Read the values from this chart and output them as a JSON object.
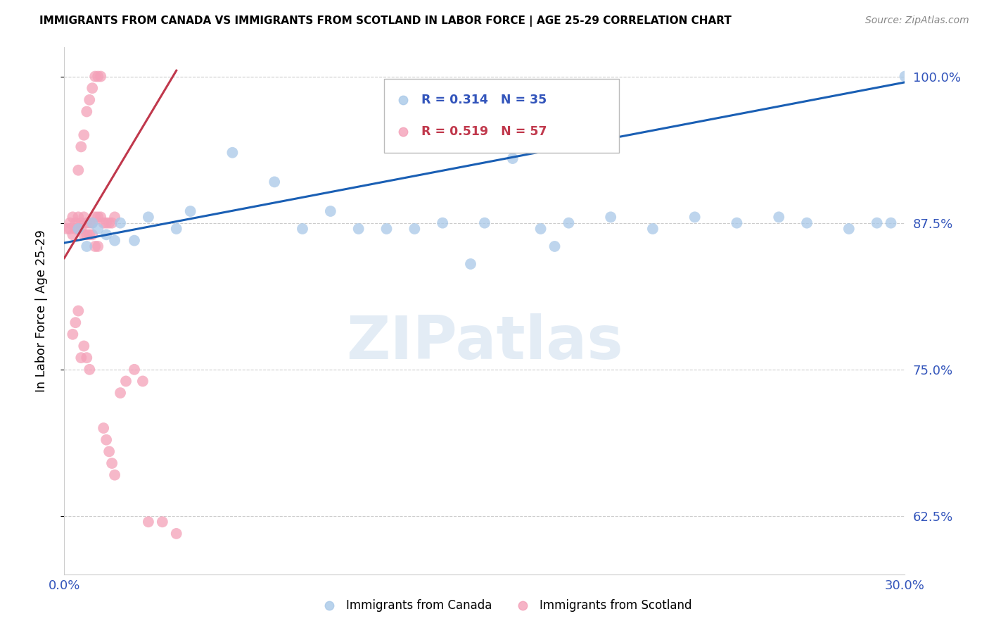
{
  "title": "IMMIGRANTS FROM CANADA VS IMMIGRANTS FROM SCOTLAND IN LABOR FORCE | AGE 25-29 CORRELATION CHART",
  "source": "Source: ZipAtlas.com",
  "ylabel": "In Labor Force | Age 25-29",
  "xlim": [
    0.0,
    0.3
  ],
  "ylim": [
    0.575,
    1.025
  ],
  "ytick_vals": [
    0.625,
    0.75,
    0.875,
    1.0
  ],
  "ytick_labels": [
    "62.5%",
    "75.0%",
    "87.5%",
    "100.0%"
  ],
  "xtick_vals": [
    0.0,
    0.05,
    0.1,
    0.15,
    0.2,
    0.25,
    0.3
  ],
  "xtick_labels": [
    "0.0%",
    "",
    "",
    "",
    "",
    "",
    "30.0%"
  ],
  "canada_R": 0.314,
  "canada_N": 35,
  "scotland_R": 0.519,
  "scotland_N": 57,
  "canada_color": "#a8c8e8",
  "scotland_color": "#f4a0b8",
  "canada_line_color": "#1a5fb4",
  "scotland_line_color": "#c0384c",
  "legend_label_canada": "Immigrants from Canada",
  "legend_label_scotland": "Immigrants from Scotland",
  "watermark_text": "ZIPatlas",
  "canada_x": [
    0.005,
    0.008,
    0.01,
    0.012,
    0.015,
    0.018,
    0.02,
    0.025,
    0.03,
    0.045,
    0.06,
    0.075,
    0.085,
    0.095,
    0.105,
    0.115,
    0.125,
    0.135,
    0.15,
    0.16,
    0.17,
    0.18,
    0.195,
    0.21,
    0.225,
    0.24,
    0.255,
    0.265,
    0.28,
    0.29,
    0.295,
    0.3,
    0.175,
    0.145,
    0.04
  ],
  "canada_y": [
    0.87,
    0.855,
    0.875,
    0.87,
    0.865,
    0.86,
    0.875,
    0.86,
    0.88,
    0.885,
    0.935,
    0.91,
    0.87,
    0.885,
    0.87,
    0.87,
    0.87,
    0.875,
    0.875,
    0.93,
    0.87,
    0.875,
    0.88,
    0.87,
    0.88,
    0.875,
    0.88,
    0.875,
    0.87,
    0.875,
    0.875,
    1.0,
    0.855,
    0.84,
    0.87
  ],
  "canada_line_x": [
    0.0,
    0.3
  ],
  "canada_line_y": [
    0.858,
    0.995
  ],
  "scotland_x": [
    0.001,
    0.002,
    0.003,
    0.004,
    0.005,
    0.006,
    0.007,
    0.008,
    0.009,
    0.01,
    0.011,
    0.012,
    0.013,
    0.014,
    0.015,
    0.016,
    0.017,
    0.018,
    0.002,
    0.003,
    0.004,
    0.005,
    0.006,
    0.007,
    0.008,
    0.009,
    0.01,
    0.011,
    0.012,
    0.003,
    0.004,
    0.005,
    0.006,
    0.007,
    0.008,
    0.009,
    0.005,
    0.006,
    0.007,
    0.008,
    0.009,
    0.01,
    0.011,
    0.012,
    0.013,
    0.014,
    0.015,
    0.016,
    0.017,
    0.018,
    0.02,
    0.022,
    0.025,
    0.028,
    0.03,
    0.035,
    0.04
  ],
  "scotland_y": [
    0.87,
    0.875,
    0.88,
    0.875,
    0.88,
    0.875,
    0.88,
    0.875,
    0.875,
    0.875,
    0.88,
    0.88,
    0.88,
    0.875,
    0.875,
    0.875,
    0.875,
    0.88,
    0.87,
    0.865,
    0.87,
    0.87,
    0.87,
    0.865,
    0.865,
    0.865,
    0.865,
    0.855,
    0.855,
    0.78,
    0.79,
    0.8,
    0.76,
    0.77,
    0.76,
    0.75,
    0.92,
    0.94,
    0.95,
    0.97,
    0.98,
    0.99,
    1.0,
    1.0,
    1.0,
    0.7,
    0.69,
    0.68,
    0.67,
    0.66,
    0.73,
    0.74,
    0.75,
    0.74,
    0.62,
    0.62,
    0.61
  ],
  "scotland_line_x": [
    0.0,
    0.04
  ],
  "scotland_line_y": [
    0.845,
    1.005
  ]
}
